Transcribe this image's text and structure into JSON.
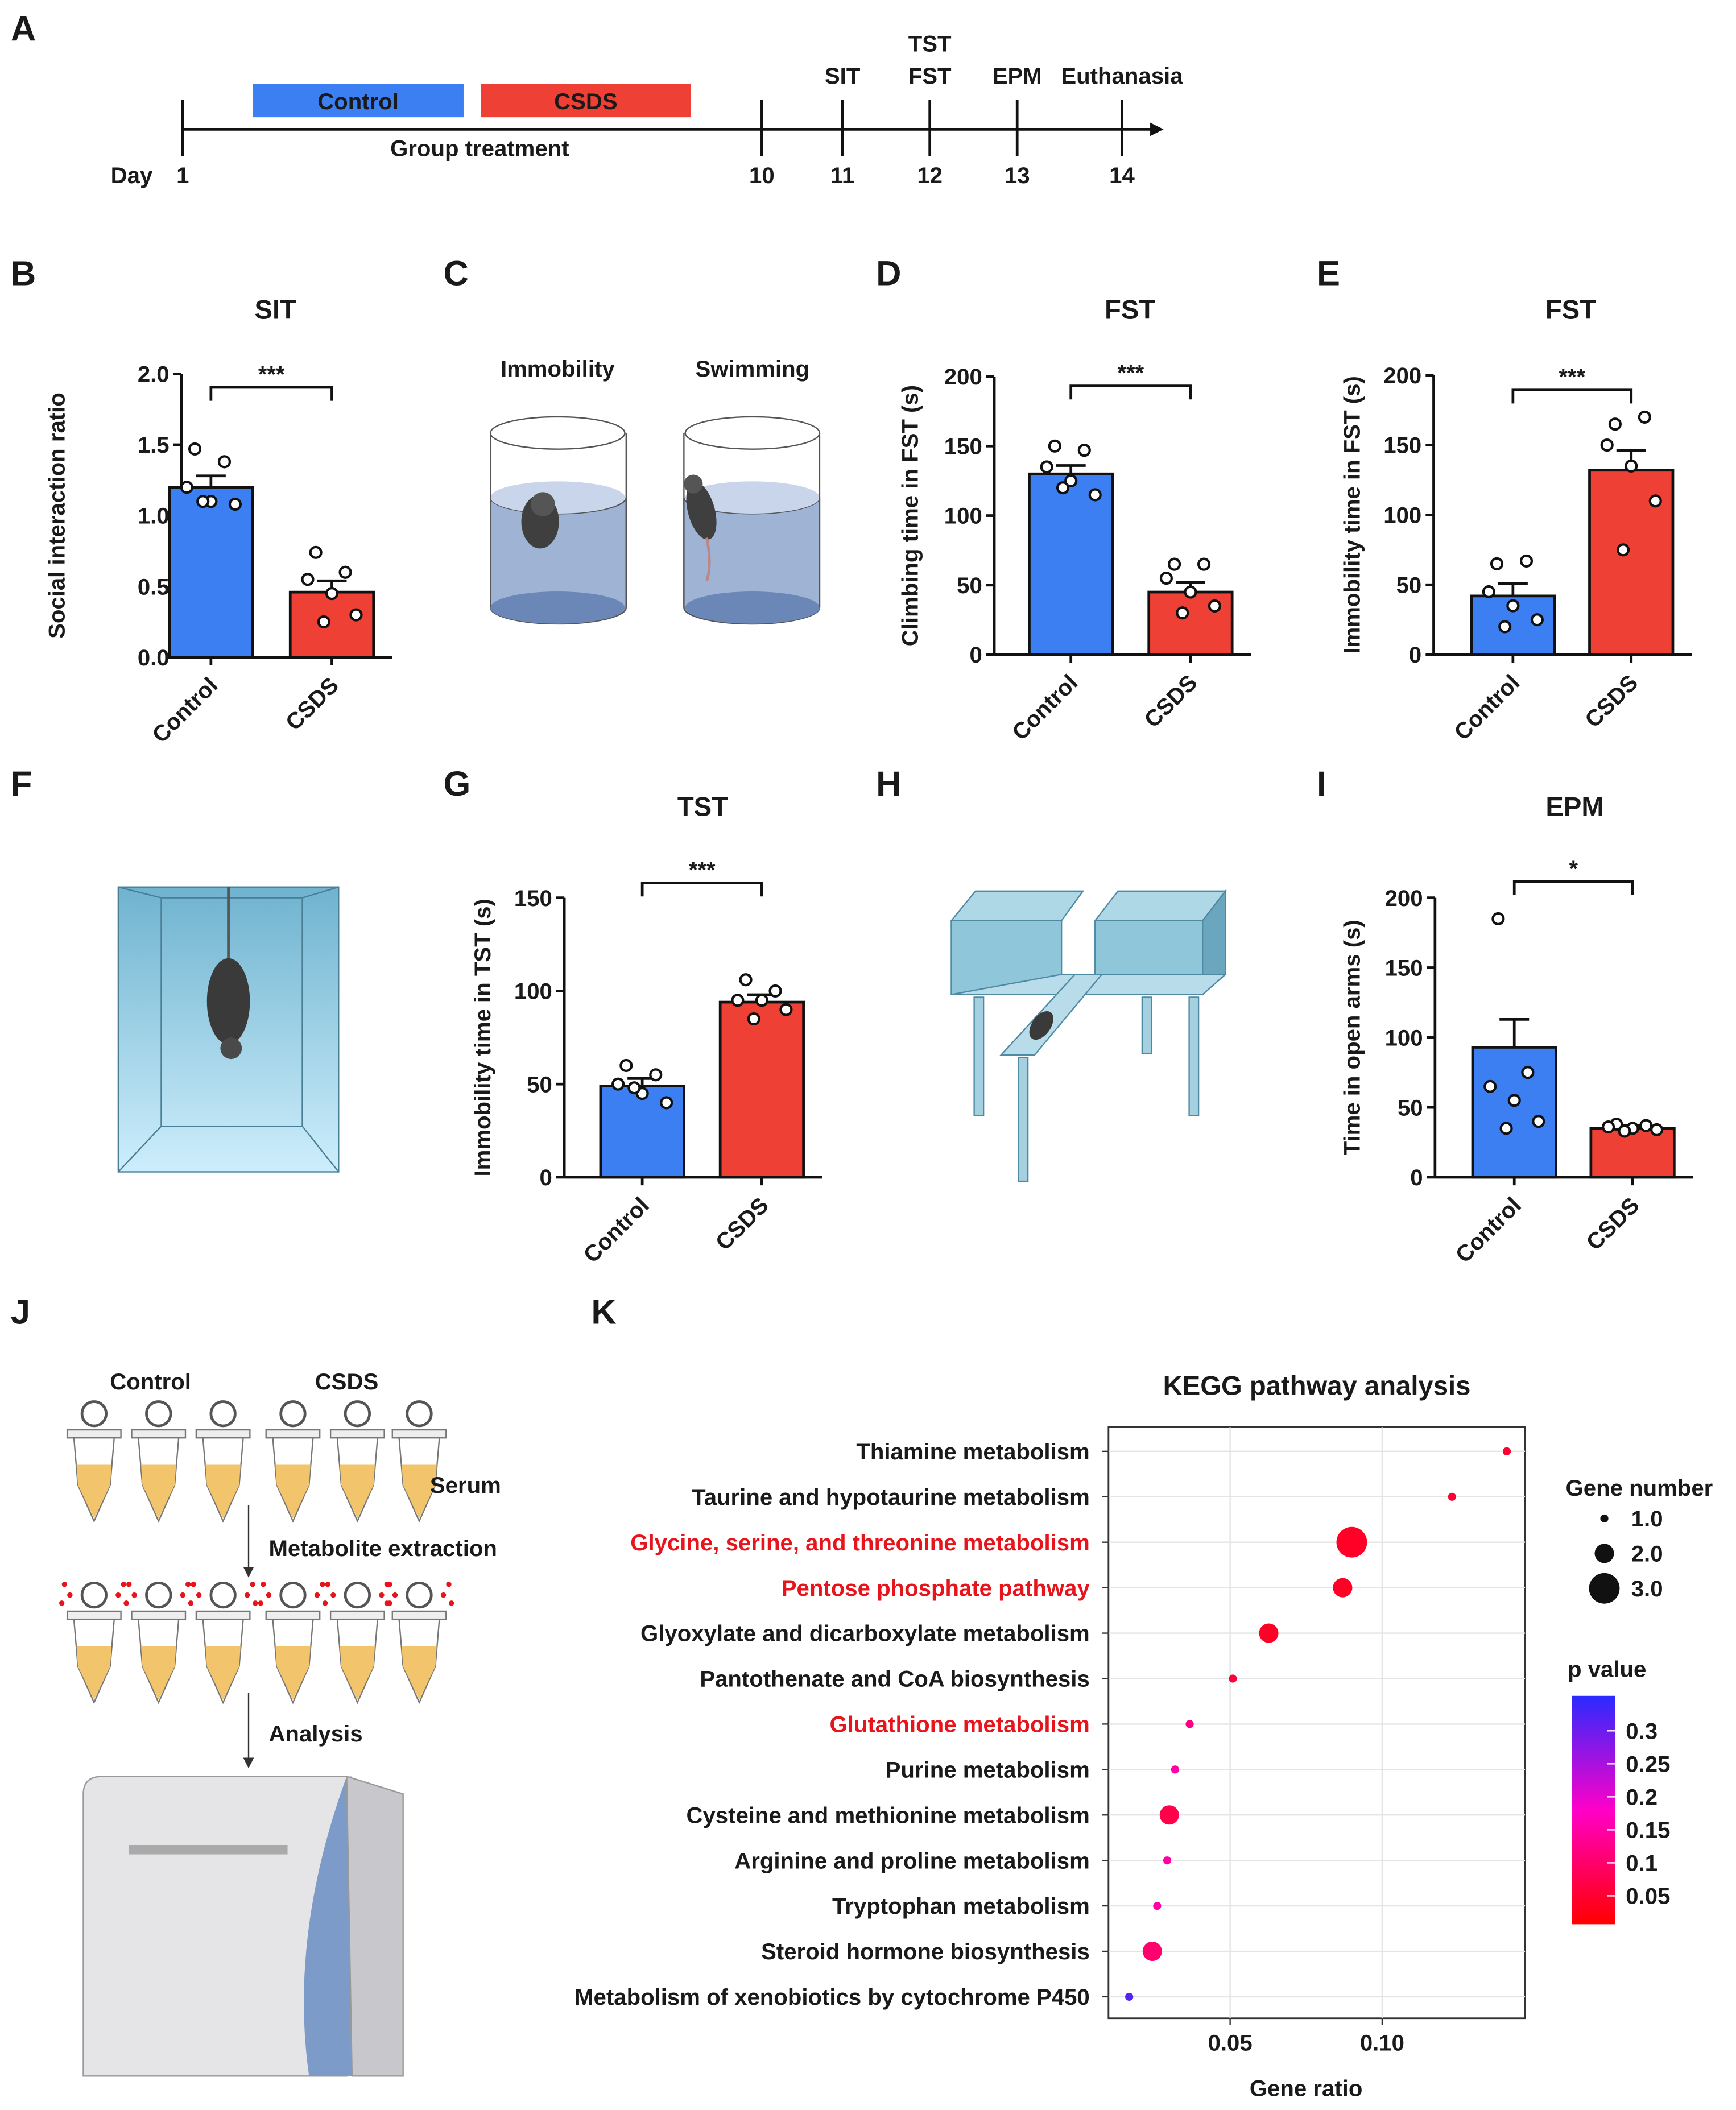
{
  "panels": [
    "A",
    "B",
    "C",
    "D",
    "E",
    "F",
    "G",
    "H",
    "I",
    "J",
    "K"
  ],
  "timeline": {
    "groups": [
      "Control",
      "CSDS"
    ],
    "group_colors": [
      "#3b7ff3",
      "#ee4035"
    ],
    "period_label": "Group treatment",
    "day_label": "Day",
    "days": [
      1,
      10,
      11,
      12,
      13,
      14
    ],
    "events": [
      [
        "SIT"
      ],
      [
        "TST",
        "FST"
      ],
      [
        "EPM"
      ],
      [
        "Euthanasia"
      ]
    ]
  },
  "illustrations": {
    "fst": [
      "Immobility",
      "Swimming"
    ],
    "metabolomics": {
      "groups": [
        "Control",
        "CSDS"
      ],
      "steps": [
        "Serum",
        "Metabolite extraction",
        "Analysis"
      ]
    }
  },
  "chart_data": [
    {
      "type": "bar",
      "title": "SIT",
      "ylabel": "Social interaction ratio",
      "categories": [
        "Control",
        "CSDS"
      ],
      "colors": [
        "#3b7ff3",
        "#ee4035"
      ],
      "values": [
        1.2,
        0.46
      ],
      "errors": [
        0.08,
        0.08
      ],
      "points": [
        [
          1.47,
          1.38,
          1.2,
          1.1,
          1.08,
          1.1
        ],
        [
          0.74,
          0.6,
          0.55,
          0.45,
          0.3,
          0.25
        ]
      ],
      "ylim": [
        0,
        2
      ],
      "yticks": [
        {
          "value": 0,
          "label": "0.0"
        },
        0.5,
        {
          "value": 1,
          "label": "1.0"
        },
        1.5,
        {
          "value": 2,
          "label": "2.0"
        }
      ],
      "significance": "***"
    },
    {
      "type": "bar",
      "title": "FST",
      "ylabel": "Climbing time in FST (s)",
      "categories": [
        "Control",
        "CSDS"
      ],
      "colors": [
        "#3b7ff3",
        "#ee4035"
      ],
      "values": [
        130,
        45
      ],
      "errors": [
        6,
        7
      ],
      "points": [
        [
          150,
          147,
          135,
          125,
          115,
          120
        ],
        [
          65,
          65,
          55,
          45,
          35,
          30
        ]
      ],
      "ylim": [
        0,
        200
      ],
      "yticks": [
        0,
        50,
        100,
        150,
        200
      ],
      "significance": "***"
    },
    {
      "type": "bar",
      "title": "FST",
      "ylabel": "Immobility time in FST (s)",
      "categories": [
        "Control",
        "CSDS"
      ],
      "colors": [
        "#3b7ff3",
        "#ee4035"
      ],
      "values": [
        42,
        132
      ],
      "errors": [
        9,
        14
      ],
      "points": [
        [
          65,
          67,
          45,
          35,
          25,
          20
        ],
        [
          165,
          170,
          150,
          135,
          110,
          75
        ]
      ],
      "ylim": [
        0,
        200
      ],
      "yticks": [
        0,
        50,
        100,
        150,
        200
      ],
      "significance": "***"
    },
    {
      "type": "bar",
      "title": "TST",
      "ylabel": "Immobility time in TST (s)",
      "categories": [
        "Control",
        "CSDS"
      ],
      "colors": [
        "#3b7ff3",
        "#ee4035"
      ],
      "values": [
        49,
        94
      ],
      "errors": [
        4,
        4
      ],
      "points": [
        [
          60,
          55,
          50,
          45,
          40,
          48
        ],
        [
          106,
          100,
          95,
          95,
          90,
          85
        ]
      ],
      "ylim": [
        0,
        150
      ],
      "yticks": [
        0,
        50,
        100,
        150
      ],
      "significance": "***"
    },
    {
      "type": "bar",
      "title": "EPM",
      "ylabel": "Time in open arms (s)",
      "categories": [
        "Control",
        "CSDS"
      ],
      "colors": [
        "#3b7ff3",
        "#ee4035"
      ],
      "values": [
        93,
        35
      ],
      "errors": [
        20,
        2
      ],
      "points": [
        [
          185,
          75,
          65,
          55,
          40,
          35
        ],
        [
          38,
          37,
          36,
          35,
          34,
          33
        ]
      ],
      "ylim": [
        0,
        200
      ],
      "yticks": [
        0,
        50,
        100,
        150,
        200
      ],
      "significance": "*"
    },
    {
      "type": "scatter",
      "title": "KEGG pathway analysis",
      "xlabel": "Gene ratio",
      "categories": [
        "Thiamine metabolism",
        "Taurine and hypotaurine metabolism",
        "Glycine, serine, and threonine metabolism",
        "Pentose phosphate pathway",
        "Glyoxylate and dicarboxylate metabolism",
        "Pantothenate and CoA biosynthesis",
        "Glutathione metabolism",
        "Purine metabolism",
        "Cysteine and methionine metabolism",
        "Arginine and proline metabolism",
        "Tryptophan metabolism",
        "Steroid hormone biosynthesis",
        "Metabolism of xenobiotics by cytochrome P450"
      ],
      "label_colors": [
        "#1a1a1a",
        "#1a1a1a",
        "#e8141c",
        "#e8141c",
        "#1a1a1a",
        "#1a1a1a",
        "#e8141c",
        "#1a1a1a",
        "#1a1a1a",
        "#1a1a1a",
        "#1a1a1a",
        "#1a1a1a",
        "#1a1a1a"
      ],
      "x": [
        0.141,
        0.123,
        0.09,
        0.087,
        0.0627,
        0.0509,
        0.0367,
        0.0319,
        0.03,
        0.0293,
        0.026,
        0.0244,
        0.0168
      ],
      "sizes": [
        1,
        1,
        3,
        2,
        2,
        1,
        1,
        1,
        2,
        1,
        1,
        2,
        1
      ],
      "pvalues": [
        0.05,
        0.05,
        0.04,
        0.04,
        0.04,
        0.06,
        0.12,
        0.15,
        0.07,
        0.15,
        0.15,
        0.1,
        0.32
      ],
      "xlim": [
        0.01,
        0.147
      ],
      "xticks": [
        0.05,
        {
          "value": 0.1,
          "label": "0.10"
        }
      ],
      "grid": true,
      "size_legend": {
        "title": "Gene number",
        "values": [
          {
            "value": 1,
            "label": "1.0"
          },
          {
            "value": 2,
            "label": "2.0"
          },
          {
            "value": 3,
            "label": "3.0"
          }
        ]
      },
      "colorbar": {
        "title": "p value",
        "lim": [
          0.007,
          0.353
        ],
        "ticks": [
          0.3,
          0.25,
          0.2,
          0.15,
          0.1,
          0.05
        ],
        "color_low": "#ff0000",
        "color_high": "#2a2aff"
      }
    }
  ]
}
